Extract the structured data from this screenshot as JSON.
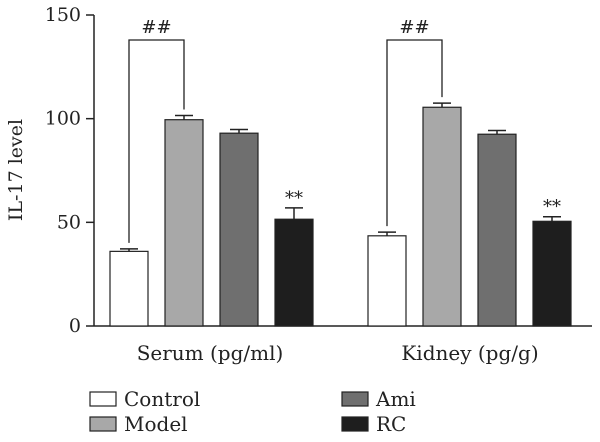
{
  "chart_data": {
    "type": "bar",
    "ylabel": "IL-17 level",
    "ylim": [
      0,
      150
    ],
    "yticks": [
      "0",
      "50",
      "100",
      "150"
    ],
    "categories": [
      "Serum (pg/ml)",
      "Kidney (pg/g)"
    ],
    "series": [
      {
        "name": "Control",
        "values": [
          36,
          43.5
        ],
        "errors": [
          1.2,
          1.8
        ],
        "color": "#ffffff"
      },
      {
        "name": "Model",
        "values": [
          99.5,
          105.5
        ],
        "errors": [
          2.0,
          2.0
        ],
        "color": "#a8a8a8"
      },
      {
        "name": "Ami",
        "values": [
          93,
          92.5
        ],
        "errors": [
          1.8,
          1.8
        ],
        "color": "#6f6f6f"
      },
      {
        "name": "RC",
        "values": [
          51.5,
          50.5
        ],
        "errors": [
          5.5,
          2.2
        ],
        "color": "#1e1e1e"
      }
    ],
    "annotations": {
      "comparison_marker": "##",
      "significance_marker": "**"
    },
    "grid": false,
    "legend_position": "bottom"
  }
}
